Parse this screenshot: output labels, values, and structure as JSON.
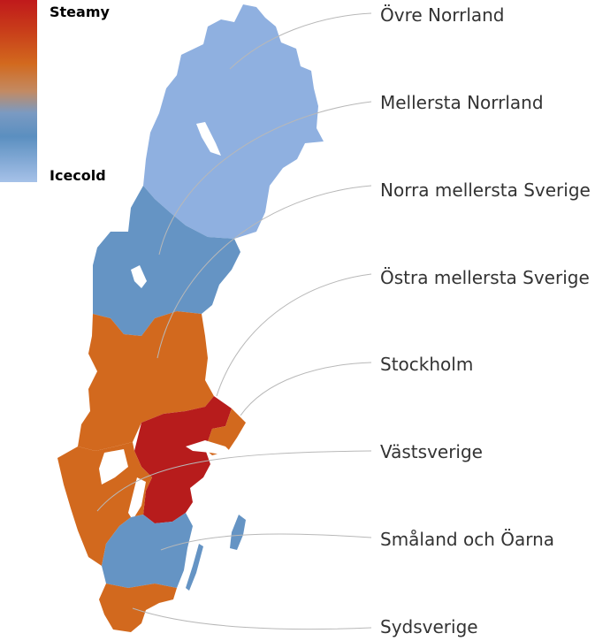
{
  "legend": {
    "top_label": "Steamy",
    "bottom_label": "Icecold",
    "colors": [
      "#c0191b",
      "#c84a14",
      "#d2691e",
      "#c8895a",
      "#7f9cc0",
      "#5b8fc0",
      "#a5c0e6"
    ]
  },
  "regions": [
    {
      "id": "ovre-norrland",
      "name": "Övre Norrland",
      "color": "#8fb0e0",
      "level": "coldest"
    },
    {
      "id": "mellersta-norrland",
      "name": "Mellersta Norrland",
      "color": "#6594c4",
      "level": "cold"
    },
    {
      "id": "norra-mellersta-sverige",
      "name": "Norra mellersta Sverige",
      "color": "#d2691e",
      "level": "warm"
    },
    {
      "id": "ostra-mellersta-sverige",
      "name": "Östra mellersta Sverige",
      "color": "#b71c1c",
      "level": "hottest"
    },
    {
      "id": "stockholm",
      "name": "Stockholm",
      "color": "#d2691e",
      "level": "warm"
    },
    {
      "id": "vastsverige",
      "name": "Västsverige",
      "color": "#d2691e",
      "level": "warm"
    },
    {
      "id": "smaland-och-oarna",
      "name": "Småland och Öarna",
      "color": "#6594c4",
      "level": "cold"
    },
    {
      "id": "sydsverige",
      "name": "Sydsverige",
      "color": "#d2691e",
      "level": "warm"
    }
  ]
}
